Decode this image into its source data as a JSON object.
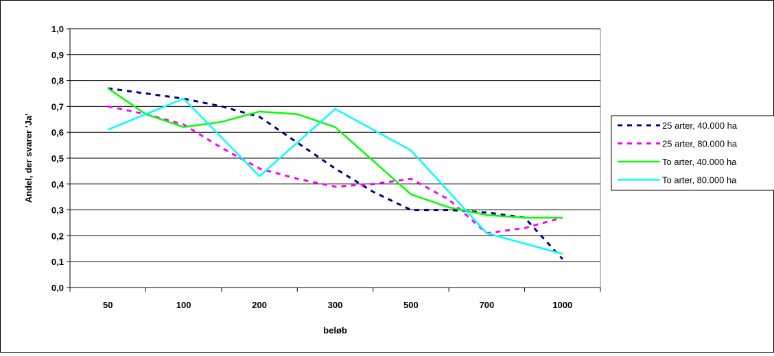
{
  "chart_data": {
    "type": "line",
    "title": "",
    "xlabel": "beløb",
    "ylabel": "Andel, der svarer 'Ja'",
    "categories": [
      "50",
      "100",
      "200",
      "300",
      "500",
      "700",
      "1000"
    ],
    "ylim": [
      0.0,
      1.0
    ],
    "yticks": [
      "0,0",
      "0,1",
      "0,2",
      "0,3",
      "0,4",
      "0,5",
      "0,6",
      "0,7",
      "0,8",
      "0,9",
      "1,0"
    ],
    "grid": true,
    "legend_position": "right",
    "series": [
      {
        "name": "25 arter, 40.000 ha",
        "color": "#000080",
        "dash": "dashed",
        "x": [
          0,
          0.5,
          1,
          1.5,
          2,
          2.5,
          3,
          3.5,
          4,
          4.5,
          5,
          5.5,
          6
        ],
        "values": [
          0.77,
          0.75,
          0.73,
          0.7,
          0.66,
          0.56,
          0.46,
          0.37,
          0.3,
          0.3,
          0.29,
          0.27,
          0.11
        ]
      },
      {
        "name": "25 arter, 80.000 ha",
        "color": "#ff00ff",
        "dash": "dashed",
        "x": [
          0,
          0.5,
          1,
          1.5,
          2,
          2.5,
          3,
          3.5,
          4,
          4.5,
          5,
          5.5,
          6
        ],
        "values": [
          0.7,
          0.67,
          0.63,
          0.54,
          0.46,
          0.42,
          0.39,
          0.4,
          0.42,
          0.34,
          0.21,
          0.23,
          0.27
        ]
      },
      {
        "name": "To arter, 40.000 ha",
        "color": "#00ff00",
        "dash": "solid",
        "x": [
          0,
          0.5,
          1,
          1.5,
          2,
          2.5,
          3,
          3.5,
          4,
          4.5,
          5,
          5.5,
          6
        ],
        "values": [
          0.77,
          0.67,
          0.62,
          0.64,
          0.68,
          0.67,
          0.62,
          0.49,
          0.36,
          0.31,
          0.28,
          0.27,
          0.27
        ]
      },
      {
        "name": "To arter, 80.000 ha",
        "color": "#00ffff",
        "dash": "solid",
        "x": [
          0,
          1,
          2,
          3,
          4,
          5,
          6
        ],
        "values": [
          0.61,
          0.73,
          0.43,
          0.69,
          0.53,
          0.21,
          0.13
        ]
      }
    ]
  }
}
